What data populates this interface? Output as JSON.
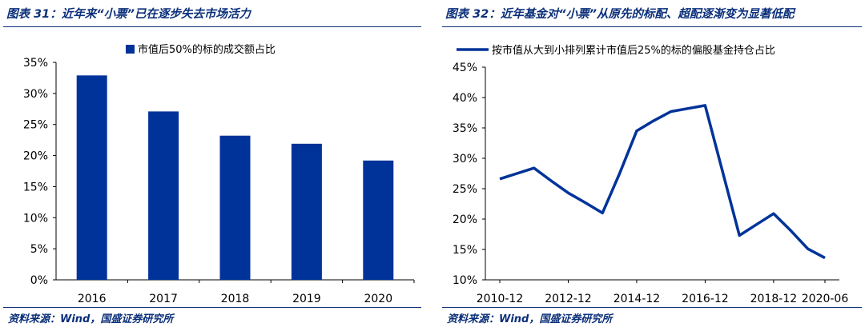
{
  "colors": {
    "accent": "#0b2f7a",
    "bar": "#003399",
    "line": "#003399"
  },
  "left": {
    "title": "图表 31：近年来“小票”已在逐步失去市场活力",
    "source": "资料来源：Wind，国盛证券研究所"
  },
  "right": {
    "title": "图表 32：近年基金对“小票”从原先的标配、超配逐渐变为显著低配",
    "source": "资料来源：Wind，国盛证券研究所"
  },
  "chart_data": [
    {
      "type": "bar",
      "categories": [
        "2016",
        "2017",
        "2018",
        "2019",
        "2020"
      ],
      "series": [
        {
          "name": "市值后50%的标的成交额占比",
          "values": [
            0.329,
            0.271,
            0.232,
            0.219,
            0.192
          ]
        }
      ],
      "ylim": [
        0,
        0.35
      ],
      "yticks": [
        "0%",
        "5%",
        "10%",
        "15%",
        "20%",
        "25%",
        "30%",
        "35%"
      ],
      "grid": false,
      "legend": "top"
    },
    {
      "type": "line",
      "x": [
        "2010-12",
        "2011-06",
        "2011-12",
        "2012-06",
        "2012-12",
        "2013-06",
        "2013-12",
        "2014-06",
        "2014-12",
        "2015-06",
        "2015-12",
        "2016-06",
        "2016-12",
        "2017-06",
        "2017-12",
        "2018-06",
        "2018-12",
        "2019-06",
        "2019-12",
        "2020-06"
      ],
      "series": [
        {
          "name": "按市值从大到小排列累计市值后25%的标的偏股基金持仓占比",
          "values": [
            0.266,
            0.275,
            0.284,
            0.263,
            0.243,
            0.227,
            0.21,
            0.275,
            0.345,
            0.362,
            0.377,
            0.382,
            0.387,
            0.28,
            0.173,
            0.191,
            0.209,
            0.181,
            0.151,
            0.136
          ]
        }
      ],
      "xticks": [
        "2010-12",
        "2012-12",
        "2014-12",
        "2016-12",
        "2018-12",
        "2020-06"
      ],
      "ylim": [
        0.1,
        0.45
      ],
      "yticks": [
        "10%",
        "15%",
        "20%",
        "25%",
        "30%",
        "35%",
        "40%",
        "45%"
      ],
      "grid": false,
      "legend": "top"
    }
  ]
}
